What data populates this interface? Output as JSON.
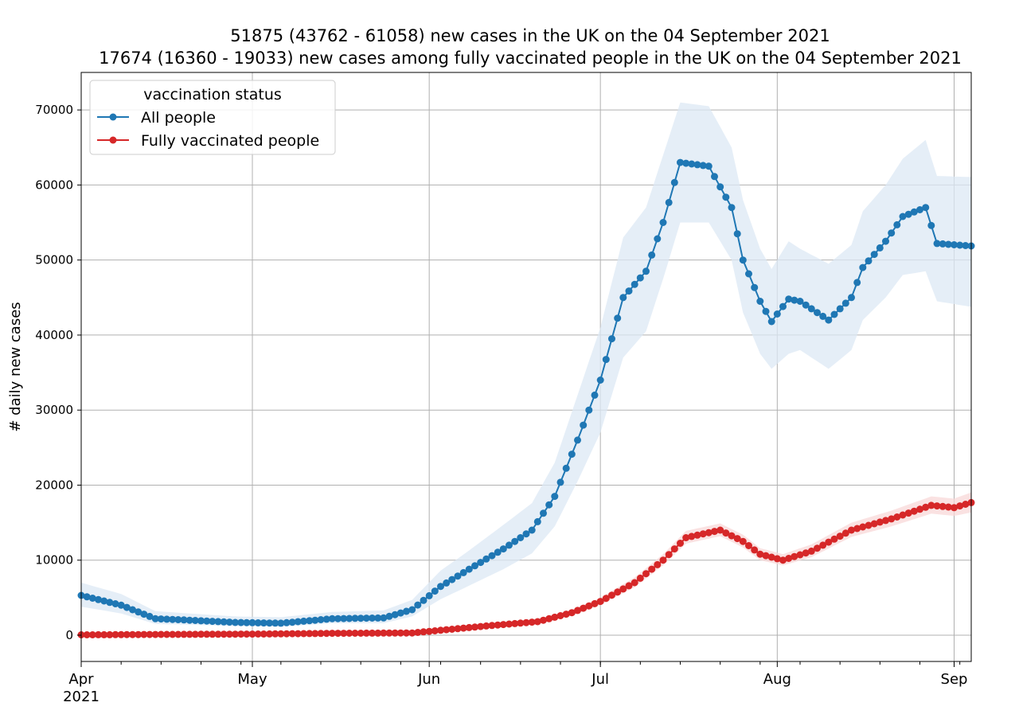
{
  "chart_data": {
    "type": "line",
    "title": "51875 (43762 - 61058) new cases in the UK on the 04 September 2021",
    "subtitle": "17674 (16360 - 19033) new cases among fully vaccinated people in the UK on the 04 September 2021",
    "ylabel": "# daily new cases",
    "xlabel": "",
    "x_start": "2021-04-01",
    "x_end": "2021-09-04",
    "ylim": [
      -3500,
      75000
    ],
    "yticks": [
      0,
      10000,
      20000,
      30000,
      40000,
      50000,
      60000,
      70000
    ],
    "xticks": [
      {
        "date": "2021-04-01",
        "label": "Apr",
        "sublabel": "2021"
      },
      {
        "date": "2021-05-01",
        "label": "May",
        "sublabel": ""
      },
      {
        "date": "2021-06-01",
        "label": "Jun",
        "sublabel": ""
      },
      {
        "date": "2021-07-01",
        "label": "Jul",
        "sublabel": ""
      },
      {
        "date": "2021-08-01",
        "label": "Aug",
        "sublabel": ""
      },
      {
        "date": "2021-09-01",
        "label": "Sep",
        "sublabel": ""
      }
    ],
    "grid": true,
    "legend": {
      "title": "vaccination status",
      "position": "upper-left"
    },
    "series": [
      {
        "name": "All people",
        "color": "#1f77b4",
        "band_color": "#dce8f4",
        "knots": [
          {
            "date": "2021-04-01",
            "y": 5300,
            "lo": 3800,
            "hi": 7000
          },
          {
            "date": "2021-04-08",
            "y": 4000,
            "lo": 2900,
            "hi": 5500
          },
          {
            "date": "2021-04-14",
            "y": 2200,
            "lo": 1500,
            "hi": 3200
          },
          {
            "date": "2021-04-20",
            "y": 2000,
            "lo": 1400,
            "hi": 2900
          },
          {
            "date": "2021-04-28",
            "y": 1700,
            "lo": 1200,
            "hi": 2500
          },
          {
            "date": "2021-05-06",
            "y": 1600,
            "lo": 1100,
            "hi": 2400
          },
          {
            "date": "2021-05-15",
            "y": 2200,
            "lo": 1600,
            "hi": 3100
          },
          {
            "date": "2021-05-24",
            "y": 2300,
            "lo": 1600,
            "hi": 3300
          },
          {
            "date": "2021-05-29",
            "y": 3400,
            "lo": 2500,
            "hi": 4700
          },
          {
            "date": "2021-06-03",
            "y": 6500,
            "lo": 4800,
            "hi": 8600
          },
          {
            "date": "2021-06-08",
            "y": 8800,
            "lo": 6600,
            "hi": 11300
          },
          {
            "date": "2021-06-14",
            "y": 11500,
            "lo": 8800,
            "hi": 14700
          },
          {
            "date": "2021-06-19",
            "y": 14000,
            "lo": 10900,
            "hi": 17600
          },
          {
            "date": "2021-06-23",
            "y": 18500,
            "lo": 14500,
            "hi": 23000
          },
          {
            "date": "2021-06-27",
            "y": 26000,
            "lo": 20500,
            "hi": 32000
          },
          {
            "date": "2021-07-01",
            "y": 34000,
            "lo": 27000,
            "hi": 41000
          },
          {
            "date": "2021-07-05",
            "y": 45000,
            "lo": 37000,
            "hi": 53000
          },
          {
            "date": "2021-07-09",
            "y": 48500,
            "lo": 40500,
            "hi": 57000
          },
          {
            "date": "2021-07-12",
            "y": 55000,
            "lo": 47500,
            "hi": 64000
          },
          {
            "date": "2021-07-15",
            "y": 63000,
            "lo": 55000,
            "hi": 71000
          },
          {
            "date": "2021-07-20",
            "y": 62500,
            "lo": 55000,
            "hi": 70500
          },
          {
            "date": "2021-07-24",
            "y": 57000,
            "lo": 50000,
            "hi": 65000
          },
          {
            "date": "2021-07-26",
            "y": 50000,
            "lo": 43000,
            "hi": 58000
          },
          {
            "date": "2021-07-29",
            "y": 44500,
            "lo": 37500,
            "hi": 51500
          },
          {
            "date": "2021-07-31",
            "y": 41800,
            "lo": 35500,
            "hi": 48800
          },
          {
            "date": "2021-08-03",
            "y": 44800,
            "lo": 37500,
            "hi": 52500
          },
          {
            "date": "2021-08-05",
            "y": 44500,
            "lo": 38000,
            "hi": 51500
          },
          {
            "date": "2021-08-10",
            "y": 42000,
            "lo": 35500,
            "hi": 49500
          },
          {
            "date": "2021-08-14",
            "y": 45000,
            "lo": 38000,
            "hi": 52000
          },
          {
            "date": "2021-08-16",
            "y": 49000,
            "lo": 42000,
            "hi": 56500
          },
          {
            "date": "2021-08-20",
            "y": 52500,
            "lo": 45000,
            "hi": 60000
          },
          {
            "date": "2021-08-23",
            "y": 55800,
            "lo": 48000,
            "hi": 63500
          },
          {
            "date": "2021-08-27",
            "y": 57000,
            "lo": 48500,
            "hi": 66000
          },
          {
            "date": "2021-08-29",
            "y": 52200,
            "lo": 44500,
            "hi": 61200
          },
          {
            "date": "2021-09-04",
            "y": 51875,
            "lo": 43762,
            "hi": 61058
          }
        ]
      },
      {
        "name": "Fully vaccinated people",
        "color": "#d62728",
        "band_color": "#f8d8d8",
        "knots": [
          {
            "date": "2021-04-01",
            "y": 50,
            "lo": 0,
            "hi": 200
          },
          {
            "date": "2021-04-14",
            "y": 100,
            "lo": 0,
            "hi": 250
          },
          {
            "date": "2021-05-01",
            "y": 150,
            "lo": 50,
            "hi": 300
          },
          {
            "date": "2021-05-15",
            "y": 250,
            "lo": 120,
            "hi": 400
          },
          {
            "date": "2021-05-29",
            "y": 300,
            "lo": 150,
            "hi": 450
          },
          {
            "date": "2021-06-05",
            "y": 800,
            "lo": 600,
            "hi": 1000
          },
          {
            "date": "2021-06-12",
            "y": 1300,
            "lo": 1050,
            "hi": 1600
          },
          {
            "date": "2021-06-20",
            "y": 1800,
            "lo": 1500,
            "hi": 2150
          },
          {
            "date": "2021-06-26",
            "y": 3000,
            "lo": 2600,
            "hi": 3400
          },
          {
            "date": "2021-07-01",
            "y": 4500,
            "lo": 4000,
            "hi": 5000
          },
          {
            "date": "2021-07-07",
            "y": 7000,
            "lo": 6400,
            "hi": 7700
          },
          {
            "date": "2021-07-12",
            "y": 10000,
            "lo": 9300,
            "hi": 10800
          },
          {
            "date": "2021-07-16",
            "y": 13000,
            "lo": 12200,
            "hi": 13900
          },
          {
            "date": "2021-07-22",
            "y": 14000,
            "lo": 13200,
            "hi": 14900
          },
          {
            "date": "2021-07-26",
            "y": 12500,
            "lo": 11700,
            "hi": 13400
          },
          {
            "date": "2021-07-29",
            "y": 10800,
            "lo": 10000,
            "hi": 11600
          },
          {
            "date": "2021-08-02",
            "y": 10000,
            "lo": 9300,
            "hi": 10800
          },
          {
            "date": "2021-08-07",
            "y": 11200,
            "lo": 10400,
            "hi": 12100
          },
          {
            "date": "2021-08-14",
            "y": 14000,
            "lo": 13100,
            "hi": 15000
          },
          {
            "date": "2021-08-21",
            "y": 15500,
            "lo": 14500,
            "hi": 16600
          },
          {
            "date": "2021-08-28",
            "y": 17300,
            "lo": 16200,
            "hi": 18500
          },
          {
            "date": "2021-09-01",
            "y": 17000,
            "lo": 15900,
            "hi": 18200
          },
          {
            "date": "2021-09-04",
            "y": 17674,
            "lo": 16360,
            "hi": 19033
          }
        ]
      }
    ]
  }
}
